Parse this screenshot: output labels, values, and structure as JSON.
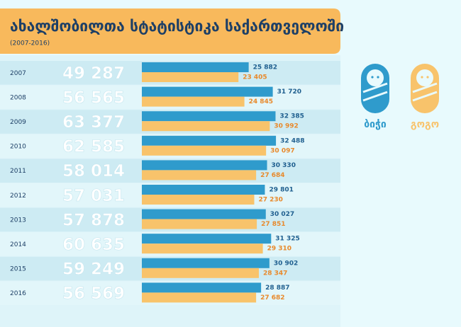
{
  "chart_data": {
    "type": "bar",
    "title": "ახალშობილთა სტატისტიკა საქართველოში",
    "subtitle": "(2007-2016)",
    "categories": [
      "2007",
      "2008",
      "2009",
      "2010",
      "2011",
      "2012",
      "2013",
      "2014",
      "2015",
      "2016"
    ],
    "totals": {
      "values": [
        49287,
        56565,
        63377,
        62585,
        58014,
        57031,
        57878,
        60635,
        59249,
        56569
      ],
      "value_labels": [
        "49 287",
        "56 565",
        "63 377",
        "62 585",
        "58 014",
        "57 031",
        "57 878",
        "60 635",
        "59 249",
        "56 569"
      ]
    },
    "series": [
      {
        "name": "ბიჭი",
        "color": "#2f9bcc",
        "label_color": "#1f5f8f",
        "values": [
          25882,
          31720,
          32385,
          32488,
          30330,
          29801,
          30027,
          31325,
          30902,
          28887
        ],
        "value_labels": [
          "25 882",
          "31 720",
          "32 385",
          "32 488",
          "30 330",
          "29 801",
          "30 027",
          "31 325",
          "30 902",
          "28 887"
        ]
      },
      {
        "name": "გოგო",
        "color": "#f8c36b",
        "label_color": "#e8892b",
        "values": [
          23405,
          24845,
          30992,
          30097,
          27684,
          27230,
          27851,
          29310,
          28347,
          27682
        ],
        "value_labels": [
          "23 405",
          "24 845",
          "30 992",
          "30 097",
          "27 684",
          "27 230",
          "27 851",
          "29 310",
          "28 347",
          "27 682"
        ]
      }
    ]
  }
}
